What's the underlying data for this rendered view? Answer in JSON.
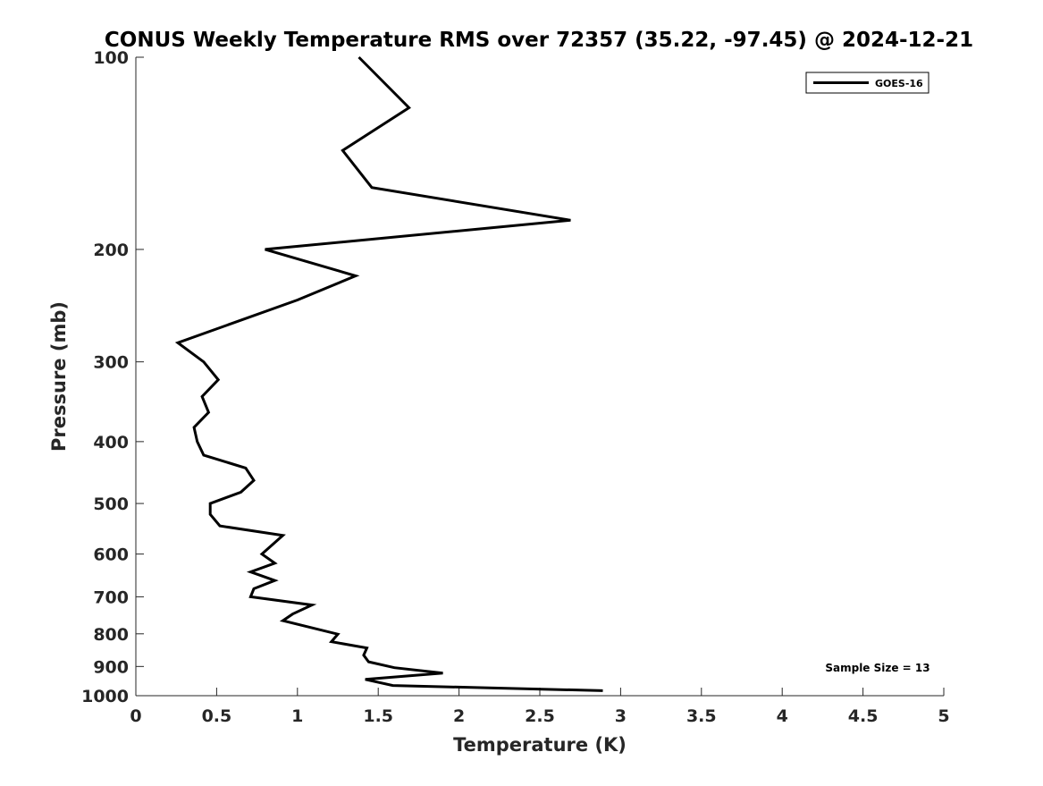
{
  "chart_data": {
    "type": "line",
    "title": "CONUS Weekly Temperature RMS over 72357 (35.22, -97.45) @ 2024-12-21",
    "xlabel": "Temperature (K)",
    "ylabel": "Pressure (mb)",
    "xlim": [
      0,
      5
    ],
    "ylim": [
      100,
      1000
    ],
    "yscale": "log",
    "yreversed": true,
    "xticks": [
      0,
      0.5,
      1,
      1.5,
      2,
      2.5,
      3,
      3.5,
      4,
      4.5,
      5
    ],
    "xtick_labels": [
      "0",
      "0.5",
      "1",
      "1.5",
      "2",
      "2.5",
      "3",
      "3.5",
      "4",
      "4.5",
      "5"
    ],
    "yticks": [
      100,
      200,
      300,
      400,
      500,
      600,
      700,
      800,
      900,
      1000
    ],
    "ytick_labels": [
      "100",
      "200",
      "300",
      "400",
      "500",
      "600",
      "700",
      "800",
      "900",
      "1000"
    ],
    "grid": false,
    "legend_position": "top-right",
    "annotation": "Sample Size = 13",
    "series": [
      {
        "name": "GOES-16",
        "color": "#000000",
        "points": [
          {
            "t": 1.38,
            "p": 100
          },
          {
            "t": 1.69,
            "p": 120
          },
          {
            "t": 1.28,
            "p": 140
          },
          {
            "t": 1.46,
            "p": 160
          },
          {
            "t": 2.69,
            "p": 180
          },
          {
            "t": 0.8,
            "p": 200
          },
          {
            "t": 1.36,
            "p": 220
          },
          {
            "t": 1.0,
            "p": 240
          },
          {
            "t": 0.26,
            "p": 280
          },
          {
            "t": 0.42,
            "p": 300
          },
          {
            "t": 0.51,
            "p": 320
          },
          {
            "t": 0.41,
            "p": 340
          },
          {
            "t": 0.45,
            "p": 360
          },
          {
            "t": 0.36,
            "p": 380
          },
          {
            "t": 0.38,
            "p": 400
          },
          {
            "t": 0.42,
            "p": 420
          },
          {
            "t": 0.68,
            "p": 440
          },
          {
            "t": 0.73,
            "p": 460
          },
          {
            "t": 0.65,
            "p": 480
          },
          {
            "t": 0.46,
            "p": 500
          },
          {
            "t": 0.46,
            "p": 520
          },
          {
            "t": 0.52,
            "p": 542
          },
          {
            "t": 0.91,
            "p": 561
          },
          {
            "t": 0.78,
            "p": 600
          },
          {
            "t": 0.86,
            "p": 620
          },
          {
            "t": 0.71,
            "p": 640
          },
          {
            "t": 0.86,
            "p": 660
          },
          {
            "t": 0.73,
            "p": 680
          },
          {
            "t": 0.71,
            "p": 700
          },
          {
            "t": 1.09,
            "p": 721
          },
          {
            "t": 0.97,
            "p": 745
          },
          {
            "t": 0.91,
            "p": 763
          },
          {
            "t": 1.25,
            "p": 801
          },
          {
            "t": 1.21,
            "p": 823
          },
          {
            "t": 1.43,
            "p": 842
          },
          {
            "t": 1.41,
            "p": 864
          },
          {
            "t": 1.44,
            "p": 885
          },
          {
            "t": 1.6,
            "p": 904
          },
          {
            "t": 1.9,
            "p": 922
          },
          {
            "t": 1.42,
            "p": 943
          },
          {
            "t": 1.59,
            "p": 964
          },
          {
            "t": 2.89,
            "p": 982
          }
        ]
      }
    ]
  }
}
